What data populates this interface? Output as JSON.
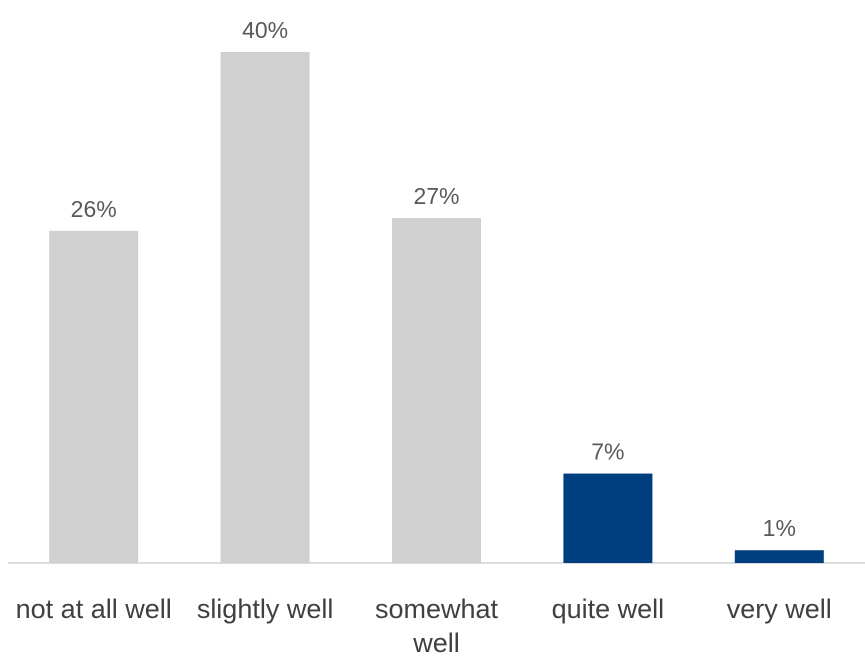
{
  "chart_data": {
    "type": "bar",
    "categories": [
      "not at all well",
      "slightly well",
      "somewhat well",
      "quite well",
      "very well"
    ],
    "values": [
      26,
      40,
      27,
      7,
      1
    ],
    "value_labels": [
      "26%",
      "40%",
      "27%",
      "7%",
      "1%"
    ],
    "colors": [
      "#d0d0d0",
      "#d0d0d0",
      "#d0d0d0",
      "#003f7f",
      "#003f7f"
    ]
  }
}
